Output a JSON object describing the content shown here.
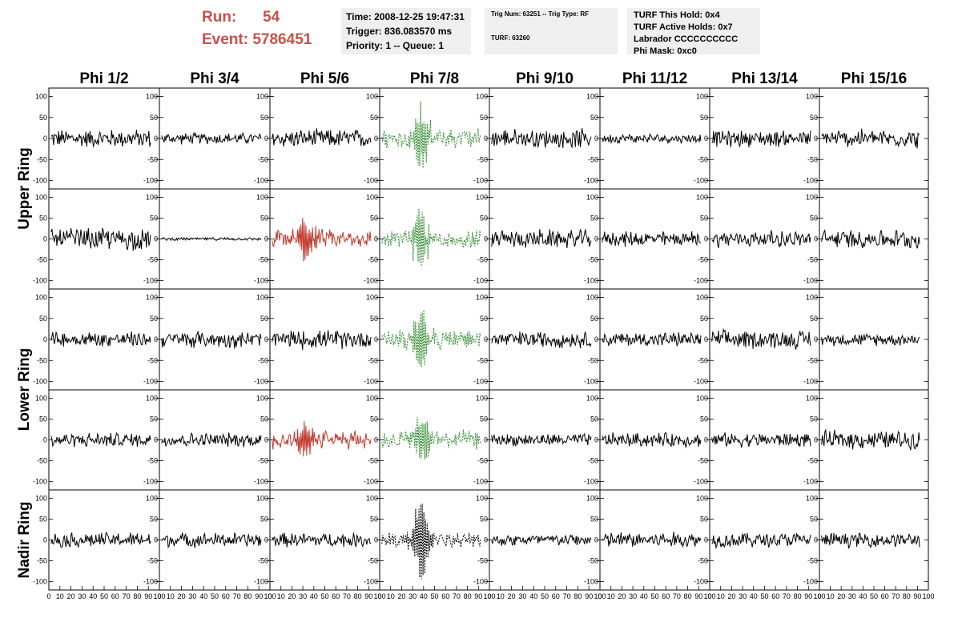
{
  "header": {
    "run_label": "Run:",
    "run_value": "54",
    "event_label": "Event:",
    "event_value": "5786451"
  },
  "info_time": {
    "line1": "Time: 2008-12-25 19:47:31",
    "line2": "Trigger: 836.083570 ms",
    "line3": "Priority: 1 -- Queue: 1"
  },
  "info_trig": {
    "line1": "Trig Num: 63251 -- Trig Type: RF",
    "line2": "TURF: 63260"
  },
  "info_turf": {
    "line1": "TURF This Hold: 0x4",
    "line2": "TURF Active Holds: 0x7",
    "line3": "Labrador CCCCCCCCCC",
    "line4": "Phi Mask: 0xc0"
  },
  "chart_data": {
    "type": "line",
    "columns": [
      "Phi 1/2",
      "Phi 3/4",
      "Phi 5/6",
      "Phi 7/8",
      "Phi 9/10",
      "Phi 11/12",
      "Phi 13/14",
      "Phi 15/16"
    ],
    "ring_labels": [
      "Upper Ring",
      "Lower Ring",
      "Nadir Ring"
    ],
    "xlim": [
      0,
      100
    ],
    "ylim": [
      -120,
      120
    ],
    "x_ticks": [
      "0",
      "10",
      "20",
      "30",
      "40",
      "50",
      "60",
      "70",
      "80",
      "90",
      "100"
    ],
    "y_ticks": [
      "100",
      "50",
      "0",
      "-50",
      "-100"
    ],
    "colors": {
      "normal": "#000000",
      "triggered": "#c0392b",
      "phi_mask": "#2e8b2e",
      "nadir_masked": "#000000"
    },
    "rows": [
      {
        "ring": "Upper Ring",
        "panels": [
          {
            "col": "Phi 1/2",
            "style": "normal",
            "amp": 18
          },
          {
            "col": "Phi 3/4",
            "style": "normal",
            "amp": 11
          },
          {
            "col": "Phi 5/6",
            "style": "normal",
            "amp": 18
          },
          {
            "col": "Phi 7/8",
            "style": "phi_mask",
            "amp": 20,
            "burst_x": 38,
            "burst_amp": 80
          },
          {
            "col": "Phi 9/10",
            "style": "normal",
            "amp": 18
          },
          {
            "col": "Phi 11/12",
            "style": "normal",
            "amp": 9
          },
          {
            "col": "Phi 13/14",
            "style": "normal",
            "amp": 16
          },
          {
            "col": "Phi 15/16",
            "style": "normal",
            "amp": 18
          }
        ]
      },
      {
        "ring": "Upper Ring",
        "panels": [
          {
            "col": "Phi 1/2",
            "style": "normal",
            "amp": 22
          },
          {
            "col": "Phi 3/4",
            "style": "normal",
            "amp": 3
          },
          {
            "col": "Phi 5/6",
            "style": "triggered",
            "amp": 18,
            "burst_x": 33,
            "burst_amp": 45
          },
          {
            "col": "Phi 7/8",
            "style": "phi_mask",
            "amp": 20,
            "burst_x": 38,
            "burst_amp": 70
          },
          {
            "col": "Phi 9/10",
            "style": "normal",
            "amp": 18
          },
          {
            "col": "Phi 11/12",
            "style": "normal",
            "amp": 15
          },
          {
            "col": "Phi 13/14",
            "style": "normal",
            "amp": 16
          },
          {
            "col": "Phi 15/16",
            "style": "normal",
            "amp": 18
          }
        ]
      },
      {
        "ring": "Lower Ring",
        "panels": [
          {
            "col": "Phi 1/2",
            "style": "normal",
            "amp": 15
          },
          {
            "col": "Phi 3/4",
            "style": "normal",
            "amp": 16
          },
          {
            "col": "Phi 5/6",
            "style": "normal",
            "amp": 18
          },
          {
            "col": "Phi 7/8",
            "style": "phi_mask",
            "amp": 18,
            "burst_x": 38,
            "burst_amp": 75
          },
          {
            "col": "Phi 9/10",
            "style": "normal",
            "amp": 16
          },
          {
            "col": "Phi 11/12",
            "style": "normal",
            "amp": 14
          },
          {
            "col": "Phi 13/14",
            "style": "normal",
            "amp": 18
          },
          {
            "col": "Phi 15/16",
            "style": "normal",
            "amp": 12
          }
        ]
      },
      {
        "ring": "Lower Ring",
        "panels": [
          {
            "col": "Phi 1/2",
            "style": "normal",
            "amp": 14
          },
          {
            "col": "Phi 3/4",
            "style": "normal",
            "amp": 14
          },
          {
            "col": "Phi 5/6",
            "style": "triggered",
            "amp": 18,
            "burst_x": 33,
            "burst_amp": 45
          },
          {
            "col": "Phi 7/8",
            "style": "phi_mask",
            "amp": 18,
            "burst_x": 38,
            "burst_amp": 55
          },
          {
            "col": "Phi 9/10",
            "style": "normal",
            "amp": 12
          },
          {
            "col": "Phi 11/12",
            "style": "normal",
            "amp": 14
          },
          {
            "col": "Phi 13/14",
            "style": "normal",
            "amp": 14
          },
          {
            "col": "Phi 15/16",
            "style": "normal",
            "amp": 18
          }
        ]
      },
      {
        "ring": "Nadir Ring",
        "panels": [
          {
            "col": "Phi 1/2",
            "style": "normal",
            "amp": 15
          },
          {
            "col": "Phi 3/4",
            "style": "normal",
            "amp": 14
          },
          {
            "col": "Phi 5/6",
            "style": "normal",
            "amp": 14
          },
          {
            "col": "Phi 7/8",
            "style": "nadir_masked",
            "amp": 14,
            "burst_x": 38,
            "burst_amp": 95
          },
          {
            "col": "Phi 9/10",
            "style": "normal",
            "amp": 12
          },
          {
            "col": "Phi 11/12",
            "style": "normal",
            "amp": 16
          },
          {
            "col": "Phi 13/14",
            "style": "normal",
            "amp": 15
          },
          {
            "col": "Phi 15/16",
            "style": "normal",
            "amp": 14
          }
        ]
      }
    ]
  }
}
